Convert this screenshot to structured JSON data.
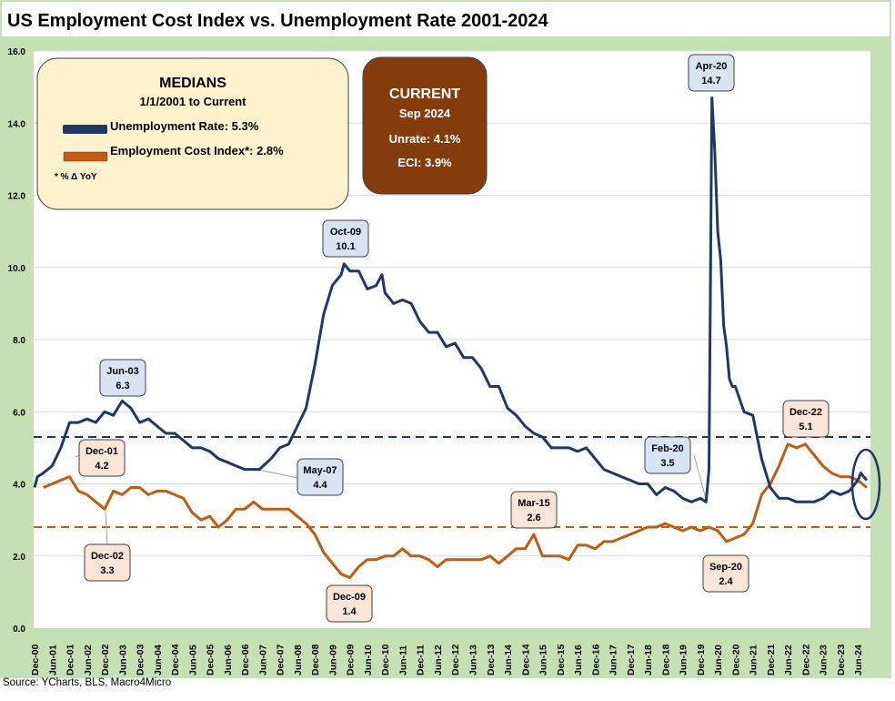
{
  "title": "US Employment Cost Index vs. Unemployment Rate 2001-2024",
  "source": "Source: YCharts, BLS, Macro4Micro",
  "colors": {
    "unrate": "#1f3864",
    "eci": "#c55a11",
    "frame": "#c5e0b4",
    "median_box": "#fff2cc",
    "current_box": "#843c0c"
  },
  "medians_box": {
    "title": "MEDIANS",
    "subtitle": "1/1/2001 to Current",
    "unrate_label": "Unemployment Rate: 5.3%",
    "eci_label": "Employment Cost Index*: 2.8%",
    "footnote": "* % Δ YoY"
  },
  "current_box": {
    "title": "CURRENT",
    "date": "Sep 2024",
    "unrate": "Unrate: 4.1%",
    "eci": "ECI:  3.9%"
  },
  "callouts": {
    "jun03": {
      "date": "Jun-03",
      "value": "6.3"
    },
    "oct09": {
      "date": "Oct-09",
      "value": "10.1"
    },
    "apr20": {
      "date": "Apr-20",
      "value": "14.7"
    },
    "may07": {
      "date": "May-07",
      "value": "4.4"
    },
    "feb20": {
      "date": "Feb-20",
      "value": "3.5"
    },
    "dec01": {
      "date": "Dec-01",
      "value": "4.2"
    },
    "dec02": {
      "date": "Dec-02",
      "value": "3.3"
    },
    "dec09": {
      "date": "Dec-09",
      "value": "1.4"
    },
    "mar15": {
      "date": "Mar-15",
      "value": "2.6"
    },
    "sep20": {
      "date": "Sep-20",
      "value": "2.4"
    },
    "dec22": {
      "date": "Dec-22",
      "value": "5.1"
    }
  },
  "chart_data": {
    "type": "line",
    "title": "US Employment Cost Index vs. Unemployment Rate 2001-2024",
    "xlabel": "",
    "ylabel": "",
    "ylim": [
      0,
      16
    ],
    "yticks": [
      "0.0",
      "2.0",
      "4.0",
      "6.0",
      "8.0",
      "10.0",
      "12.0",
      "14.0",
      "16.0"
    ],
    "xticks": [
      "Dec-00",
      "Jun-01",
      "Dec-01",
      "Jun-02",
      "Dec-02",
      "Jun-03",
      "Dec-03",
      "Jun-04",
      "Dec-04",
      "Jun-05",
      "Dec-05",
      "Jun-06",
      "Dec-06",
      "Jun-07",
      "Dec-07",
      "Jun-08",
      "Dec-08",
      "Jun-09",
      "Dec-09",
      "Jun-10",
      "Dec-10",
      "Jun-11",
      "Dec-11",
      "Jun-12",
      "Dec-12",
      "Jun-13",
      "Dec-13",
      "Jun-14",
      "Dec-14",
      "Jun-15",
      "Dec-15",
      "Jun-16",
      "Dec-16",
      "Jun-17",
      "Dec-17",
      "Jun-18",
      "Dec-18",
      "Jun-19",
      "Dec-19",
      "Jun-20",
      "Dec-20",
      "Jun-21",
      "Dec-21",
      "Jun-22",
      "Dec-22",
      "Jun-23",
      "Dec-23",
      "Jun-24"
    ],
    "grid": true,
    "medians": {
      "unrate": 5.3,
      "eci": 2.8
    },
    "series": [
      {
        "name": "Unemployment Rate",
        "x": [
          "2000-12",
          "2001-01",
          "2001-03",
          "2001-06",
          "2001-09",
          "2001-12",
          "2002-03",
          "2002-06",
          "2002-09",
          "2002-12",
          "2003-03",
          "2003-06",
          "2003-09",
          "2003-12",
          "2004-03",
          "2004-06",
          "2004-09",
          "2004-12",
          "2005-03",
          "2005-06",
          "2005-09",
          "2005-12",
          "2006-03",
          "2006-06",
          "2006-09",
          "2006-12",
          "2007-03",
          "2007-05",
          "2007-09",
          "2007-12",
          "2008-03",
          "2008-06",
          "2008-09",
          "2008-12",
          "2009-03",
          "2009-06",
          "2009-09",
          "2009-10",
          "2009-12",
          "2010-03",
          "2010-06",
          "2010-09",
          "2010-11",
          "2010-12",
          "2011-03",
          "2011-06",
          "2011-09",
          "2011-12",
          "2012-03",
          "2012-06",
          "2012-09",
          "2012-12",
          "2013-03",
          "2013-06",
          "2013-09",
          "2013-12",
          "2014-03",
          "2014-06",
          "2014-09",
          "2014-12",
          "2015-03",
          "2015-06",
          "2015-09",
          "2015-12",
          "2016-03",
          "2016-06",
          "2016-09",
          "2016-12",
          "2017-03",
          "2017-06",
          "2017-09",
          "2017-12",
          "2018-03",
          "2018-06",
          "2018-09",
          "2018-12",
          "2019-03",
          "2019-06",
          "2019-09",
          "2019-12",
          "2020-02",
          "2020-03",
          "2020-04",
          "2020-05",
          "2020-06",
          "2020-07",
          "2020-08",
          "2020-09",
          "2020-10",
          "2020-11",
          "2020-12",
          "2021-03",
          "2021-06",
          "2021-09",
          "2021-12",
          "2022-03",
          "2022-06",
          "2022-09",
          "2022-12",
          "2023-03",
          "2023-06",
          "2023-09",
          "2023-12",
          "2024-03",
          "2024-06",
          "2024-07",
          "2024-08",
          "2024-09"
        ],
        "values": [
          3.9,
          4.2,
          4.3,
          4.5,
          5.0,
          5.7,
          5.7,
          5.8,
          5.7,
          6.0,
          5.9,
          6.3,
          6.1,
          5.7,
          5.8,
          5.6,
          5.4,
          5.4,
          5.2,
          5.0,
          5.0,
          4.9,
          4.7,
          4.6,
          4.5,
          4.4,
          4.4,
          4.4,
          4.7,
          5.0,
          5.1,
          5.6,
          6.1,
          7.3,
          8.7,
          9.5,
          9.8,
          10.1,
          9.9,
          9.9,
          9.4,
          9.5,
          9.8,
          9.3,
          9.0,
          9.1,
          9.0,
          8.5,
          8.2,
          8.2,
          7.8,
          7.9,
          7.5,
          7.5,
          7.2,
          6.7,
          6.7,
          6.1,
          5.9,
          5.6,
          5.4,
          5.3,
          5.0,
          5.0,
          5.0,
          4.9,
          5.0,
          4.7,
          4.4,
          4.3,
          4.2,
          4.1,
          4.0,
          4.0,
          3.7,
          3.9,
          3.8,
          3.6,
          3.5,
          3.6,
          3.5,
          4.4,
          14.7,
          13.2,
          11.0,
          10.2,
          8.4,
          7.8,
          6.9,
          6.7,
          6.7,
          6.0,
          5.9,
          4.7,
          3.9,
          3.6,
          3.6,
          3.5,
          3.5,
          3.5,
          3.6,
          3.8,
          3.7,
          3.8,
          4.1,
          4.3,
          4.2,
          4.1
        ]
      },
      {
        "name": "Employment Cost Index",
        "x": [
          "2001-03",
          "2001-06",
          "2001-09",
          "2001-12",
          "2002-03",
          "2002-06",
          "2002-09",
          "2002-12",
          "2003-03",
          "2003-06",
          "2003-09",
          "2003-12",
          "2004-03",
          "2004-06",
          "2004-09",
          "2004-12",
          "2005-03",
          "2005-06",
          "2005-09",
          "2005-12",
          "2006-03",
          "2006-06",
          "2006-09",
          "2006-12",
          "2007-03",
          "2007-06",
          "2007-09",
          "2007-12",
          "2008-03",
          "2008-06",
          "2008-09",
          "2008-12",
          "2009-03",
          "2009-06",
          "2009-09",
          "2009-12",
          "2010-03",
          "2010-06",
          "2010-09",
          "2010-12",
          "2011-03",
          "2011-06",
          "2011-09",
          "2011-12",
          "2012-03",
          "2012-06",
          "2012-09",
          "2012-12",
          "2013-03",
          "2013-06",
          "2013-09",
          "2013-12",
          "2014-03",
          "2014-06",
          "2014-09",
          "2014-12",
          "2015-03",
          "2015-06",
          "2015-09",
          "2015-12",
          "2016-03",
          "2016-06",
          "2016-09",
          "2016-12",
          "2017-03",
          "2017-06",
          "2017-09",
          "2017-12",
          "2018-03",
          "2018-06",
          "2018-09",
          "2018-12",
          "2019-03",
          "2019-06",
          "2019-09",
          "2019-12",
          "2020-03",
          "2020-06",
          "2020-09",
          "2020-12",
          "2021-03",
          "2021-06",
          "2021-09",
          "2021-12",
          "2022-03",
          "2022-06",
          "2022-09",
          "2022-12",
          "2023-03",
          "2023-06",
          "2023-09",
          "2023-12",
          "2024-03",
          "2024-06",
          "2024-09"
        ],
        "values": [
          3.9,
          4.0,
          4.1,
          4.2,
          3.8,
          3.7,
          3.5,
          3.3,
          3.8,
          3.7,
          3.9,
          3.9,
          3.7,
          3.8,
          3.8,
          3.7,
          3.6,
          3.2,
          3.0,
          3.1,
          2.8,
          3.0,
          3.3,
          3.3,
          3.5,
          3.3,
          3.3,
          3.3,
          3.3,
          3.1,
          2.9,
          2.6,
          2.1,
          1.8,
          1.5,
          1.4,
          1.7,
          1.9,
          1.9,
          2.0,
          2.0,
          2.2,
          2.0,
          2.0,
          1.9,
          1.7,
          1.9,
          1.9,
          1.9,
          1.9,
          1.9,
          2.0,
          1.8,
          2.0,
          2.2,
          2.2,
          2.6,
          2.0,
          2.0,
          2.0,
          1.9,
          2.3,
          2.3,
          2.2,
          2.4,
          2.4,
          2.5,
          2.6,
          2.7,
          2.8,
          2.8,
          2.9,
          2.8,
          2.7,
          2.8,
          2.7,
          2.8,
          2.7,
          2.4,
          2.5,
          2.6,
          2.9,
          3.7,
          4.0,
          4.5,
          5.1,
          5.0,
          5.1,
          4.8,
          4.5,
          4.3,
          4.2,
          4.2,
          4.1,
          3.9
        ]
      }
    ]
  }
}
